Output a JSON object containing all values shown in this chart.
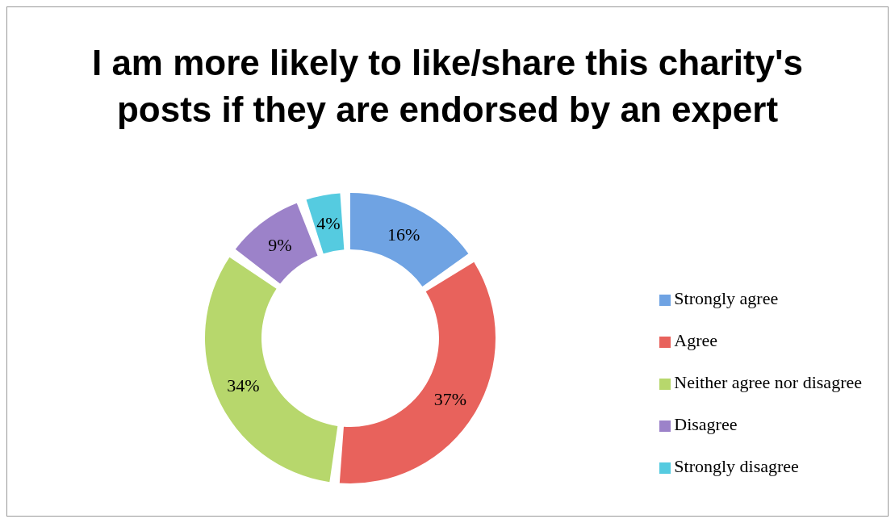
{
  "chart_data": {
    "type": "donut",
    "title": "I am more likely to like/share this charity's posts if they are endorsed by an expert",
    "categories": [
      "Strongly agree",
      "Agree",
      "Neither agree nor disagree",
      "Disagree",
      "Strongly disagree"
    ],
    "values": [
      16,
      37,
      34,
      9,
      4
    ],
    "value_labels": [
      "16%",
      "37%",
      "34%",
      "9%",
      "4%"
    ],
    "colors": [
      "#6fa3e3",
      "#e8625c",
      "#b7d76c",
      "#9c82c9",
      "#55cbe0"
    ],
    "legend": "right"
  }
}
